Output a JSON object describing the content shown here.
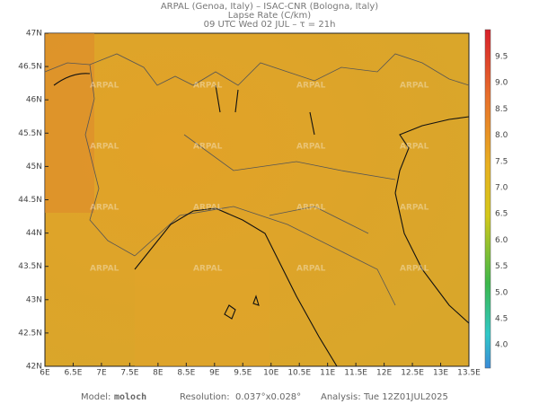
{
  "header": {
    "lines": [
      "ARPAL (Genoa, Italy)  –  ISAC-CNR (Bologna, Italy)",
      "Lapse Rate (C/km)",
      "09 UTC Wed 02 JUL  –  τ = 21h"
    ]
  },
  "map": {
    "lat_labels": [
      "47N",
      "46.5N",
      "46N",
      "45.5N",
      "45N",
      "44.5N",
      "44N",
      "43.5N",
      "43N",
      "42.5N",
      "42N"
    ],
    "lon_labels": [
      "6E",
      "6.5E",
      "7E",
      "7.5E",
      "8E",
      "8.5E",
      "9E",
      "9.5E",
      "10E",
      "10.5E",
      "11E",
      "11.5E",
      "12E",
      "12.5E",
      "13E",
      "13.5E"
    ],
    "watermark": "ARPAL"
  },
  "colorbar": {
    "labels": [
      "9.5",
      "9.0",
      "8.5",
      "8.0",
      "7.5",
      "7.0",
      "6.5",
      "6.0",
      "5.5",
      "5.0",
      "4.5",
      "4.0"
    ]
  },
  "footer": {
    "model_label": "Model:",
    "model": "moloch",
    "resolution_label": "Resolution:",
    "resolution": "0.037°x0.028°",
    "analysis_label": "Analysis:",
    "analysis": "Tue 12Z01JUL2025"
  }
}
